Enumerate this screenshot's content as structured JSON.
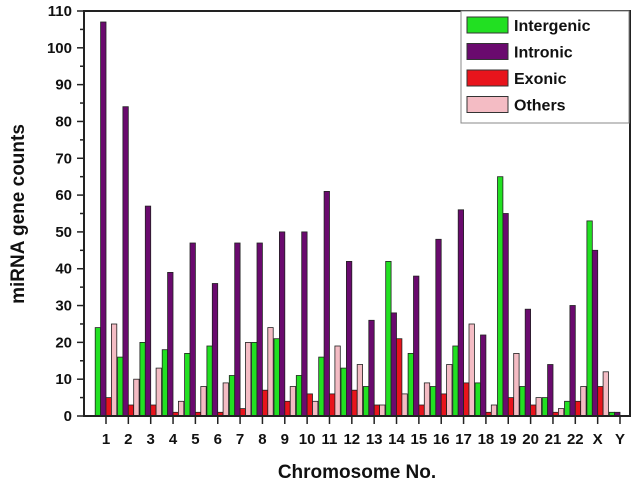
{
  "chart_data": {
    "type": "bar",
    "title": "",
    "xlabel": "Chromosome No.",
    "ylabel": "miRNA gene counts",
    "ylim": [
      0,
      110
    ],
    "yticks": [
      0,
      10,
      20,
      30,
      40,
      50,
      60,
      70,
      80,
      90,
      100,
      110
    ],
    "grid": false,
    "legend_position": "top-right",
    "categories": [
      "1",
      "2",
      "3",
      "4",
      "5",
      "6",
      "7",
      "8",
      "9",
      "10",
      "11",
      "12",
      "13",
      "14",
      "15",
      "16",
      "17",
      "18",
      "19",
      "20",
      "21",
      "22",
      "X",
      "Y"
    ],
    "series": [
      {
        "name": "Intergenic",
        "color": "#22e022",
        "values": [
          24,
          16,
          20,
          18,
          17,
          19,
          11,
          20,
          21,
          11,
          16,
          13,
          8,
          42,
          17,
          8,
          19,
          9,
          65,
          8,
          5,
          4,
          53,
          1
        ]
      },
      {
        "name": "Intronic",
        "color": "#6a0a6e",
        "values": [
          107,
          84,
          57,
          39,
          47,
          36,
          47,
          47,
          50,
          50,
          61,
          42,
          26,
          28,
          38,
          48,
          56,
          22,
          55,
          29,
          14,
          30,
          45,
          1
        ]
      },
      {
        "name": "Exonic",
        "color": "#e8141c",
        "values": [
          5,
          3,
          3,
          1,
          1,
          1,
          2,
          7,
          4,
          6,
          6,
          7,
          3,
          21,
          3,
          6,
          9,
          1,
          5,
          3,
          1,
          4,
          8,
          0
        ]
      },
      {
        "name": "Others",
        "color": "#f4bcc4",
        "values": [
          25,
          10,
          13,
          4,
          8,
          9,
          20,
          24,
          8,
          4,
          19,
          14,
          3,
          6,
          9,
          14,
          25,
          3,
          17,
          5,
          2,
          8,
          12,
          0
        ]
      }
    ]
  }
}
